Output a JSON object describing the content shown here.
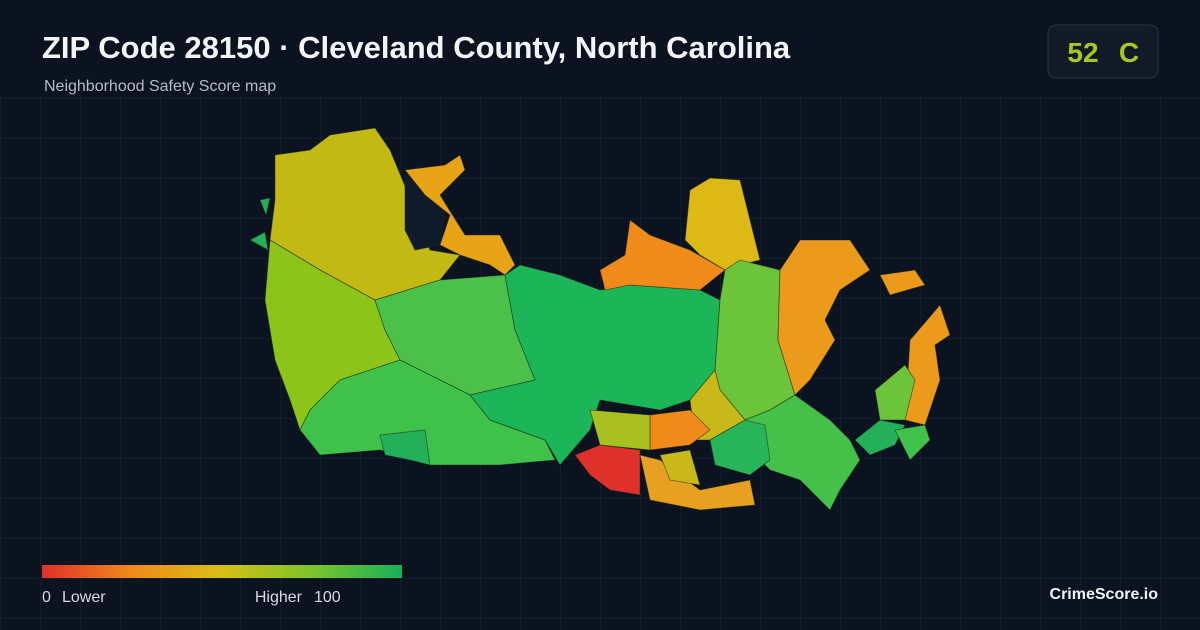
{
  "header": {
    "title": "ZIP Code 28150 · Cleveland County, North Carolina",
    "subtitle": "Neighborhood Safety Score map"
  },
  "score": {
    "value": "52",
    "grade": "C"
  },
  "legend": {
    "min": "0",
    "min_label": "Lower",
    "max_label": "Higher",
    "max": "100"
  },
  "brand": "CrimeScore.io"
}
